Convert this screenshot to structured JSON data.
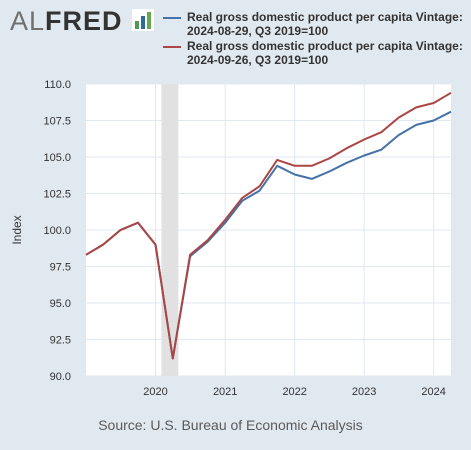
{
  "logo": {
    "al": "AL",
    "fred": "FRED"
  },
  "source_note": "Source: U.S. Bureau of Economic Analysis",
  "colors": {
    "background": "#e1e9f0",
    "plot": "#ffffff",
    "grid": "#e1e9f0",
    "recession": "#e1e1e1"
  },
  "chart_data": {
    "type": "line",
    "title": "",
    "xlabel": "",
    "ylabel": "Index",
    "ylim": [
      90,
      110
    ],
    "yticks": [
      "90.0",
      "92.5",
      "95.0",
      "97.5",
      "100.0",
      "102.5",
      "105.0",
      "107.5",
      "110.0"
    ],
    "xticks": [
      "2020",
      "2021",
      "2022",
      "2023",
      "2024"
    ],
    "xlim": [
      "2019-01-01",
      "2024-04-01"
    ],
    "grid": true,
    "legend_position": "top",
    "recession_shading": {
      "start": "2020-02-01",
      "end": "2020-04-30"
    },
    "x": [
      "2019-01-01",
      "2019-04-01",
      "2019-07-01",
      "2019-10-01",
      "2020-01-01",
      "2020-04-01",
      "2020-07-01",
      "2020-10-01",
      "2021-01-01",
      "2021-04-01",
      "2021-07-01",
      "2021-10-01",
      "2022-01-01",
      "2022-04-01",
      "2022-07-01",
      "2022-10-01",
      "2023-01-01",
      "2023-04-01",
      "2023-07-01",
      "2023-10-01",
      "2024-01-01",
      "2024-04-01"
    ],
    "series": [
      {
        "name": "Real gross domestic product per capita Vintage: 2024-08-29, Q3 2019=100",
        "color": "#4572a7",
        "values": [
          98.3,
          99.0,
          100.0,
          100.5,
          99.0,
          91.2,
          98.2,
          99.2,
          100.5,
          102.0,
          102.7,
          104.4,
          103.8,
          103.5,
          104.0,
          104.6,
          105.1,
          105.5,
          106.5,
          107.2,
          107.5,
          108.1
        ]
      },
      {
        "name": "Real gross domestic product per capita Vintage: 2024-09-26, Q3 2019=100",
        "color": "#aa4643",
        "values": [
          98.3,
          99.0,
          100.0,
          100.5,
          99.0,
          91.2,
          98.3,
          99.3,
          100.7,
          102.2,
          103.0,
          104.8,
          104.4,
          104.4,
          104.9,
          105.6,
          106.2,
          106.7,
          107.7,
          108.4,
          108.7,
          109.4
        ]
      }
    ]
  }
}
